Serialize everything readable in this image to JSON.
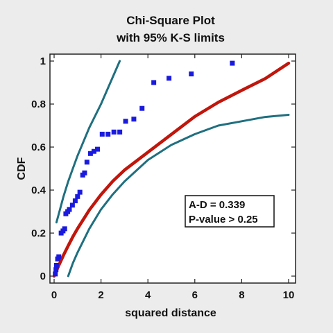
{
  "chart_data": {
    "type": "scatter",
    "title": "Chi-Square Plot",
    "subtitle": "with 95% K-S limits",
    "xlabel": "squared distance",
    "ylabel": "CDF",
    "xlim": [
      0,
      10
    ],
    "ylim": [
      0,
      1
    ],
    "x_ticks": [
      "0",
      "2",
      "4",
      "6",
      "8",
      "10"
    ],
    "y_ticks": [
      "0",
      "0.2",
      "0.4",
      "0.6",
      "0.8",
      "1"
    ],
    "x_tick_values": [
      0,
      2,
      4,
      6,
      8,
      10
    ],
    "y_tick_values": [
      0,
      0.2,
      0.4,
      0.6,
      0.8,
      1
    ],
    "grid": false,
    "series": [
      {
        "kind": "points",
        "color": "#1a1adf",
        "points": [
          [
            0.05,
            0.01
          ],
          [
            0.08,
            0.03
          ],
          [
            0.1,
            0.05
          ],
          [
            0.15,
            0.08
          ],
          [
            0.2,
            0.09
          ],
          [
            0.3,
            0.2
          ],
          [
            0.38,
            0.21
          ],
          [
            0.45,
            0.22
          ],
          [
            0.5,
            0.29
          ],
          [
            0.58,
            0.3
          ],
          [
            0.65,
            0.31
          ],
          [
            0.78,
            0.33
          ],
          [
            0.9,
            0.35
          ],
          [
            1.0,
            0.37
          ],
          [
            1.1,
            0.39
          ],
          [
            1.22,
            0.47
          ],
          [
            1.3,
            0.48
          ],
          [
            1.4,
            0.53
          ],
          [
            1.55,
            0.57
          ],
          [
            1.7,
            0.58
          ],
          [
            1.85,
            0.59
          ],
          [
            2.05,
            0.66
          ],
          [
            2.3,
            0.66
          ],
          [
            2.55,
            0.67
          ],
          [
            2.8,
            0.67
          ],
          [
            3.05,
            0.72
          ],
          [
            3.4,
            0.73
          ],
          [
            3.75,
            0.78
          ],
          [
            4.25,
            0.9
          ],
          [
            4.9,
            0.92
          ],
          [
            5.85,
            0.94
          ],
          [
            7.6,
            0.99
          ]
        ]
      },
      {
        "kind": "fitted-cdf",
        "color": "#c0160c",
        "x": [
          0,
          0.1,
          0.2,
          0.4,
          0.6,
          0.8,
          1,
          1.5,
          2,
          2.5,
          3,
          4,
          5,
          6,
          7,
          8,
          9,
          10
        ],
        "y": [
          0,
          0.025,
          0.05,
          0.097,
          0.141,
          0.183,
          0.221,
          0.307,
          0.379,
          0.441,
          0.493,
          0.576,
          0.659,
          0.742,
          0.808,
          0.864,
          0.918,
          0.99
        ]
      },
      {
        "kind": "upper-ks-limit",
        "color": "#1f6f7f",
        "x": [
          0.1,
          0.2,
          0.4,
          0.6,
          0.8,
          1,
          1.5,
          2,
          2.4,
          2.8
        ],
        "y": [
          0.25,
          0.29,
          0.37,
          0.44,
          0.5,
          0.56,
          0.69,
          0.8,
          0.9,
          1.0
        ]
      },
      {
        "kind": "lower-ks-limit",
        "color": "#1f6f7f",
        "x": [
          0.6,
          0.8,
          1,
          1.5,
          2,
          2.5,
          3,
          4,
          5,
          6,
          7,
          8,
          9,
          10
        ],
        "y": [
          0.0,
          0.06,
          0.11,
          0.22,
          0.31,
          0.38,
          0.44,
          0.54,
          0.61,
          0.66,
          0.7,
          0.72,
          0.74,
          0.75
        ]
      }
    ],
    "annotation": {
      "line1": "A-D = 0.339",
      "line2": "P-value > 0.25"
    }
  }
}
